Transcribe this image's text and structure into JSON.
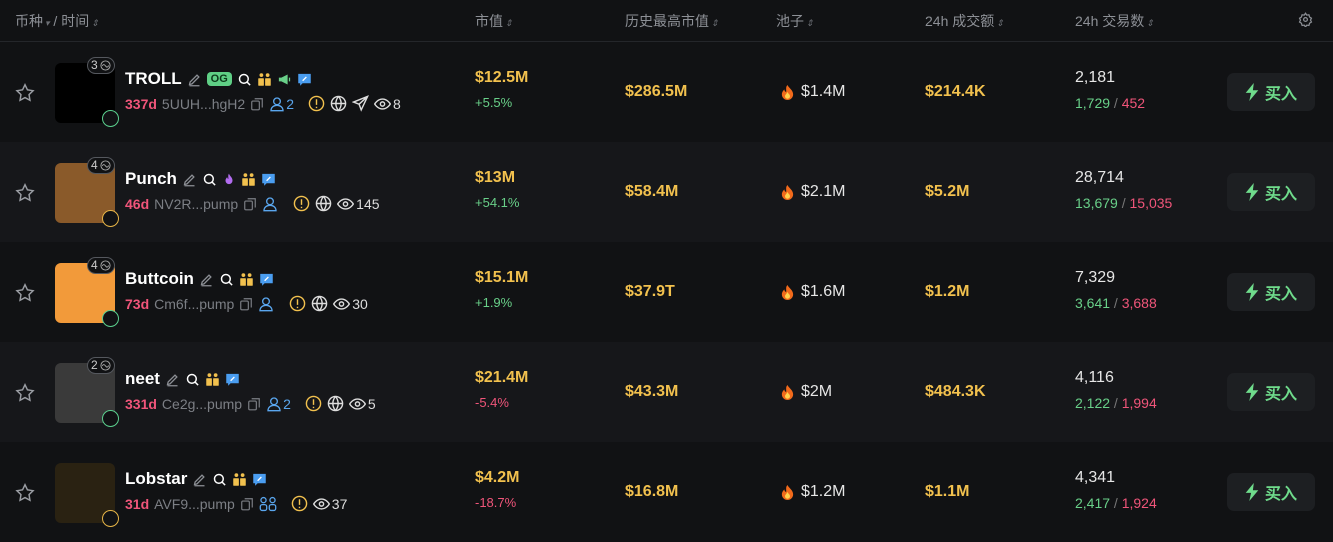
{
  "header": {
    "coin": "币种",
    "sep": "/",
    "time": "时间",
    "mcap": "市值",
    "ath": "历史最高市值",
    "pool": "池子",
    "vol": "24h 成交额",
    "txns": "24h 交易数"
  },
  "colors": {
    "accent_gold": "#f2c14e",
    "up": "#69d089",
    "down": "#f0557a",
    "blue": "#5aa6ee"
  },
  "rows": [
    {
      "name": "TROLL",
      "og": "OG",
      "holders_badge": "3",
      "age": "337d",
      "addr": "5UUH...hgH2",
      "followers": "2",
      "views": "8",
      "mcap": "$12.5M",
      "change": "+5.5%",
      "dir": "up",
      "ath": "$286.5M",
      "pool": "$1.4M",
      "vol": "$214.4K",
      "txns": "2,181",
      "buys": "1,729",
      "sells": "452",
      "buy_label": "买入",
      "icons": [
        "pencil",
        "search",
        "family",
        "megaphone",
        "chat"
      ],
      "links": [
        "warning",
        "globe",
        "telegram"
      ],
      "avatar_color": "#000",
      "pill": "green"
    },
    {
      "name": "Punch",
      "holders_badge": "4",
      "age": "46d",
      "addr": "NV2R...pump",
      "followers": "",
      "views": "145",
      "mcap": "$13M",
      "change": "+54.1%",
      "dir": "up",
      "ath": "$58.4M",
      "pool": "$2.1M",
      "vol": "$5.2M",
      "txns": "28,714",
      "buys": "13,679",
      "sells": "15,035",
      "buy_label": "买入",
      "icons": [
        "pencil",
        "search",
        "fire",
        "family",
        "chat"
      ],
      "links": [
        "warning",
        "globe"
      ],
      "avatar_color": "#8a5a2a",
      "pill": "yellow"
    },
    {
      "name": "Buttcoin",
      "holders_badge": "4",
      "age": "73d",
      "addr": "Cm6f...pump",
      "followers": "",
      "views": "30",
      "mcap": "$15.1M",
      "change": "+1.9%",
      "dir": "up",
      "ath": "$37.9T",
      "pool": "$1.6M",
      "vol": "$1.2M",
      "txns": "7,329",
      "buys": "3,641",
      "sells": "3,688",
      "buy_label": "买入",
      "icons": [
        "pencil",
        "search",
        "family",
        "chat"
      ],
      "links": [
        "warning",
        "globe"
      ],
      "avatar_color": "#f29a3a",
      "pill": "green"
    },
    {
      "name": "neet",
      "holders_badge": "2",
      "age": "331d",
      "addr": "Ce2g...pump",
      "followers": "2",
      "views": "5",
      "mcap": "$21.4M",
      "change": "-5.4%",
      "dir": "dn",
      "ath": "$43.3M",
      "pool": "$2M",
      "vol": "$484.3K",
      "txns": "4,116",
      "buys": "2,122",
      "sells": "1,994",
      "buy_label": "买入",
      "icons": [
        "pencil",
        "search",
        "family",
        "chat"
      ],
      "links": [
        "warning",
        "globe"
      ],
      "avatar_color": "#3a3a3a",
      "pill": "green"
    },
    {
      "name": "Lobstar",
      "age": "31d",
      "addr": "AVF9...pump",
      "followers": "",
      "views": "37",
      "mcap": "$4.2M",
      "change": "-18.7%",
      "dir": "dn",
      "ath": "$16.8M",
      "pool": "$1.2M",
      "vol": "$1.1M",
      "txns": "4,341",
      "buys": "2,417",
      "sells": "1,924",
      "buy_label": "买入",
      "icons": [
        "pencil",
        "search",
        "family",
        "chat"
      ],
      "links": [
        "warning"
      ],
      "avatar_color": "#2a2212",
      "pill": "yellow",
      "group": true
    }
  ]
}
